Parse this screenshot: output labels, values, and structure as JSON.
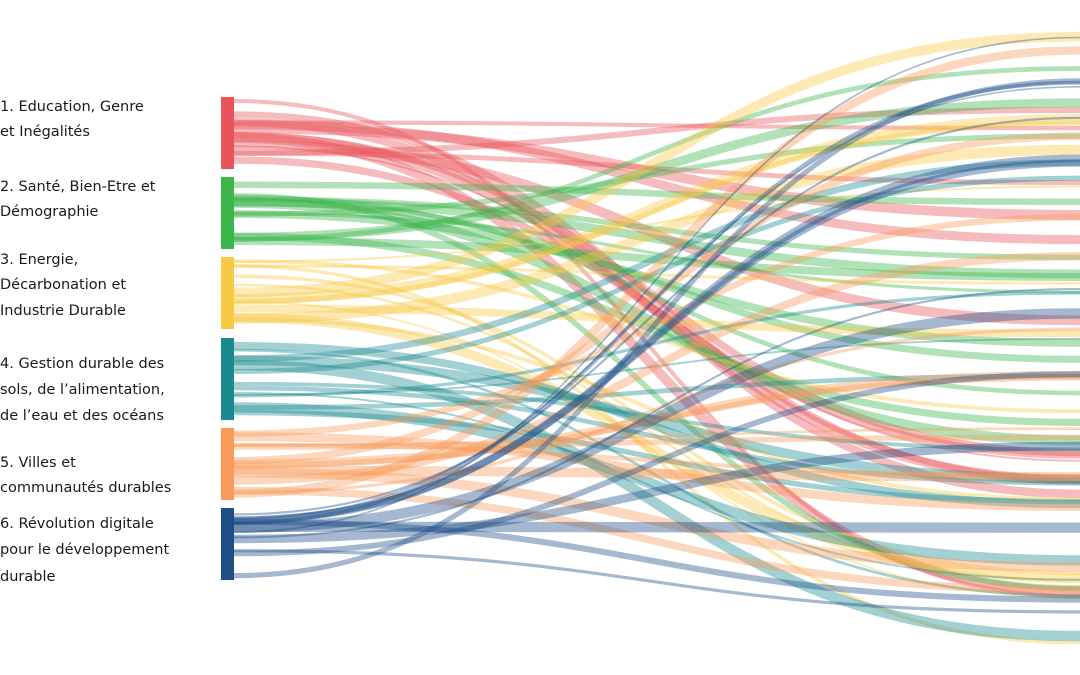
{
  "nodes": [
    {
      "lines": [
        "1. Education, Genre",
        "et Inégalités"
      ],
      "color": "#e8545a"
    },
    {
      "lines": [
        "2. Santé, Bien-Etre et",
        "Démographie"
      ],
      "color": "#3cb54a"
    },
    {
      "lines": [
        "3. Energie,",
        "Décarbonation et",
        "Industrie Durable"
      ],
      "color": "#f7c844"
    },
    {
      "lines": [
        "4. Gestion durable des",
        "sols, de l’alimentation,",
        "de l’eau et des océans"
      ],
      "color": "#1a8a8f"
    },
    {
      "lines": [
        "5. Villes et",
        "communautés durables"
      ],
      "color": "#f79a5a"
    },
    {
      "lines": [
        "6. Révolution digitale",
        "pour le développement",
        "durable"
      ],
      "color": "#1f4e86"
    }
  ]
}
